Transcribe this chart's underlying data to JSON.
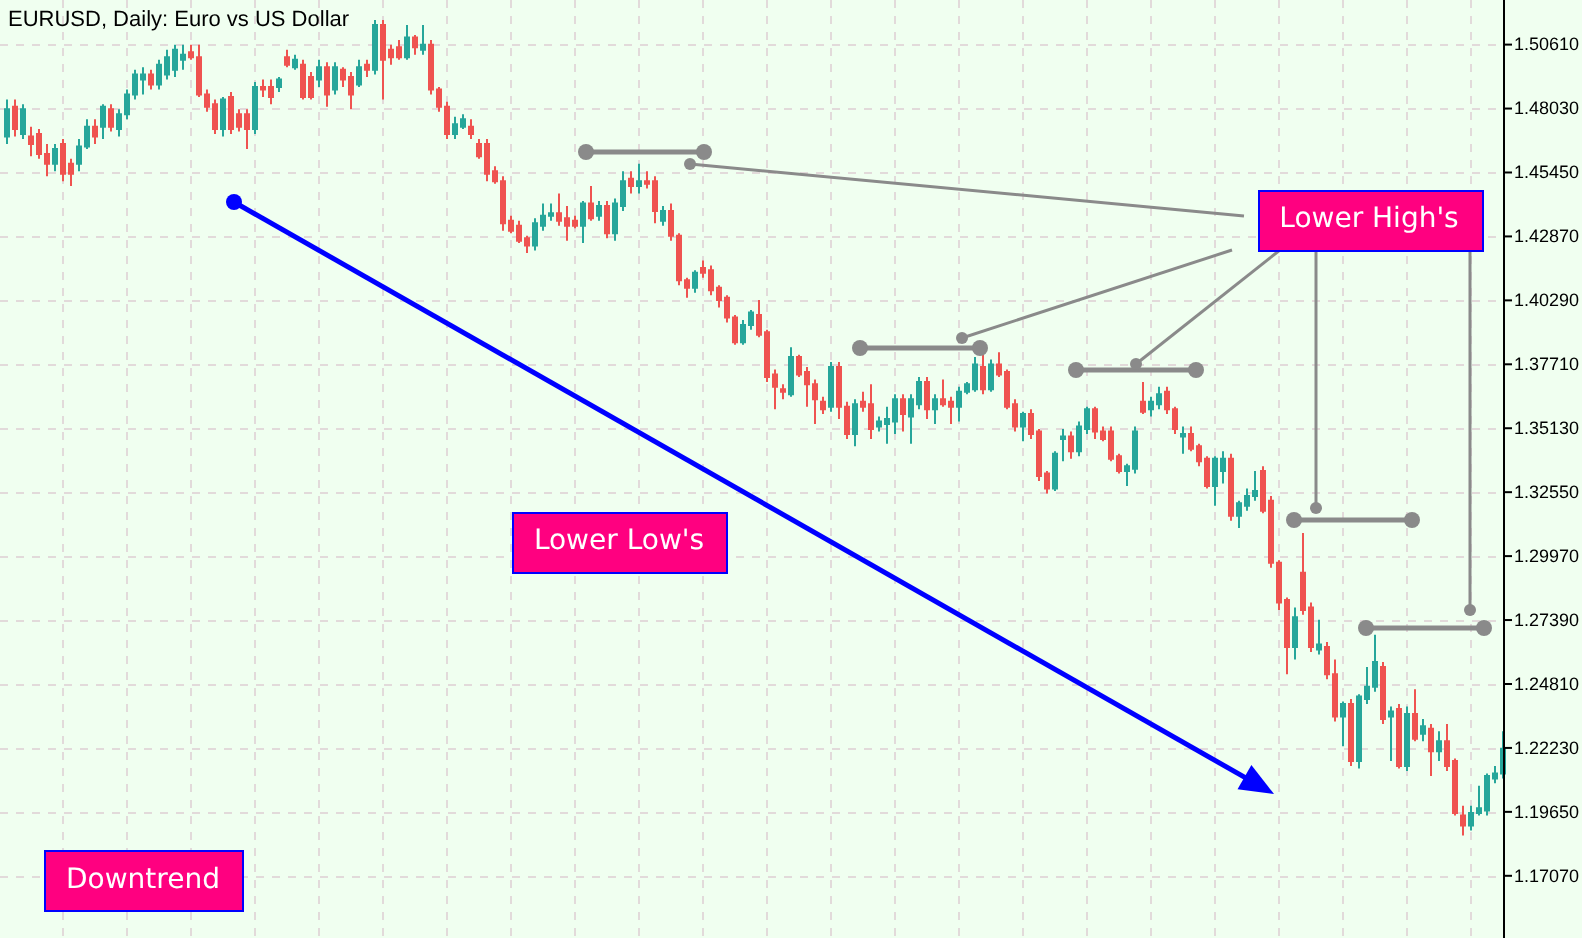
{
  "chart_data": {
    "type": "candlestick",
    "title": "EURUSD, Daily: Euro vs US Dollar",
    "categories": [
      null,
      null,
      null,
      null,
      null,
      null,
      null,
      null,
      null,
      null,
      null,
      null,
      null,
      null,
      null,
      null,
      null,
      null,
      null,
      null,
      null,
      null,
      null,
      null,
      null,
      null,
      null,
      null,
      null,
      null,
      null,
      null,
      null,
      null,
      null,
      null,
      null,
      null,
      null,
      null,
      null,
      null,
      null,
      null,
      null,
      null,
      null,
      null,
      null,
      null,
      null,
      null,
      null,
      null,
      null,
      null,
      null,
      null,
      null,
      null,
      null,
      null,
      null,
      null,
      null,
      null,
      null,
      null,
      null,
      null,
      null,
      null,
      null,
      null,
      null,
      null,
      null,
      null,
      null,
      null,
      null,
      null,
      null,
      null,
      null,
      null,
      null,
      null,
      null,
      null,
      null,
      null,
      null,
      null,
      null,
      null,
      null,
      null,
      null,
      null,
      null,
      null,
      null,
      null,
      null,
      null,
      null,
      null,
      null,
      null,
      null,
      null,
      null,
      null,
      null,
      null,
      null,
      null,
      null,
      null,
      null,
      null,
      null,
      null,
      null,
      null,
      null,
      null,
      null,
      null,
      null,
      null,
      null,
      null,
      null,
      null,
      null,
      null,
      null,
      null,
      null,
      null,
      null,
      null,
      null,
      null,
      null,
      null,
      null,
      null,
      null,
      null,
      null,
      null,
      null,
      null,
      null,
      null,
      null,
      null,
      null,
      null,
      null,
      null,
      null,
      null,
      null,
      null,
      null,
      null,
      null,
      null,
      null,
      null,
      null,
      null,
      null,
      null,
      null,
      null,
      null,
      null,
      null,
      null,
      null,
      null,
      null,
      null
    ],
    "ohlc": [
      [
        1.469,
        1.484,
        1.466,
        1.48
      ],
      [
        1.481,
        1.484,
        1.469,
        1.472
      ],
      [
        1.47,
        1.482,
        1.468,
        1.48
      ],
      [
        1.469,
        1.473,
        1.461,
        1.466
      ],
      [
        1.47,
        1.472,
        1.46,
        1.462
      ],
      [
        1.462,
        1.466,
        1.453,
        1.458
      ],
      [
        1.458,
        1.466,
        1.455,
        1.464
      ],
      [
        1.466,
        1.468,
        1.451,
        1.454
      ],
      [
        1.458,
        1.46,
        1.449,
        1.454
      ],
      [
        1.458,
        1.468,
        1.455,
        1.465
      ],
      [
        1.465,
        1.476,
        1.464,
        1.473
      ],
      [
        1.473,
        1.476,
        1.466,
        1.469
      ],
      [
        1.473,
        1.482,
        1.468,
        1.481
      ],
      [
        1.48,
        1.482,
        1.471,
        1.473
      ],
      [
        1.472,
        1.48,
        1.469,
        1.478
      ],
      [
        1.478,
        1.488,
        1.476,
        1.486
      ],
      [
        1.486,
        1.496,
        1.484,
        1.494
      ],
      [
        1.492,
        1.497,
        1.486,
        1.494
      ],
      [
        1.494,
        1.496,
        1.488,
        1.49
      ],
      [
        1.49,
        1.5,
        1.488,
        1.498
      ],
      [
        1.494,
        1.504,
        1.492,
        1.501
      ],
      [
        1.496,
        1.506,
        1.493,
        1.504
      ],
      [
        1.5,
        1.506,
        1.496,
        1.502
      ],
      [
        1.503,
        1.506,
        1.5,
        1.501
      ],
      [
        1.501,
        1.506,
        1.485,
        1.486
      ],
      [
        1.486,
        1.488,
        1.479,
        1.481
      ],
      [
        1.482,
        1.484,
        1.47,
        1.472
      ],
      [
        1.472,
        1.485,
        1.469,
        1.484
      ],
      [
        1.485,
        1.487,
        1.47,
        1.472
      ],
      [
        1.478,
        1.48,
        1.471,
        1.473
      ],
      [
        1.478,
        1.48,
        1.464,
        1.472
      ],
      [
        1.472,
        1.491,
        1.47,
        1.489
      ],
      [
        1.489,
        1.492,
        1.485,
        1.488
      ],
      [
        1.489,
        1.492,
        1.482,
        1.485
      ],
      [
        1.489,
        1.493,
        1.487,
        1.492
      ],
      [
        1.501,
        1.504,
        1.497,
        1.498
      ],
      [
        1.497,
        1.502,
        1.496,
        1.5
      ],
      [
        1.498,
        1.5,
        1.484,
        1.485
      ],
      [
        1.493,
        1.495,
        1.484,
        1.485
      ],
      [
        1.492,
        1.5,
        1.489,
        1.497
      ],
      [
        1.497,
        1.499,
        1.481,
        1.486
      ],
      [
        1.488,
        1.499,
        1.486,
        1.497
      ],
      [
        1.496,
        1.497,
        1.489,
        1.492
      ],
      [
        1.493,
        1.495,
        1.48,
        1.486
      ],
      [
        1.49,
        1.5,
        1.489,
        1.497
      ],
      [
        1.498,
        1.5,
        1.493,
        1.496
      ],
      [
        1.496,
        1.516,
        1.494,
        1.514
      ],
      [
        1.514,
        1.516,
        1.484,
        1.5
      ],
      [
        1.504,
        1.506,
        1.498,
        1.501
      ],
      [
        1.505,
        1.508,
        1.5,
        1.501
      ],
      [
        1.501,
        1.514,
        1.5,
        1.509
      ],
      [
        1.509,
        1.51,
        1.502,
        1.505
      ],
      [
        1.504,
        1.514,
        1.502,
        1.506
      ],
      [
        1.506,
        1.508,
        1.486,
        1.488
      ],
      [
        1.488,
        1.489,
        1.479,
        1.481
      ],
      [
        1.481,
        1.483,
        1.468,
        1.47
      ],
      [
        1.47,
        1.477,
        1.468,
        1.474
      ],
      [
        1.473,
        1.478,
        1.472,
        1.476
      ],
      [
        1.473,
        1.476,
        1.468,
        1.47
      ],
      [
        1.466,
        1.468,
        1.46,
        1.461
      ],
      [
        1.466,
        1.468,
        1.451,
        1.454
      ],
      [
        1.455,
        1.457,
        1.45,
        1.451
      ],
      [
        1.451,
        1.453,
        1.431,
        1.434
      ],
      [
        1.435,
        1.437,
        1.43,
        1.431
      ],
      [
        1.433,
        1.435,
        1.426,
        1.427
      ],
      [
        1.428,
        1.429,
        1.422,
        1.425
      ],
      [
        1.425,
        1.436,
        1.423,
        1.434
      ],
      [
        1.433,
        1.442,
        1.431,
        1.437
      ],
      [
        1.437,
        1.442,
        1.435,
        1.438
      ],
      [
        1.438,
        1.446,
        1.433,
        1.435
      ],
      [
        1.436,
        1.441,
        1.427,
        1.433
      ],
      [
        1.435,
        1.437,
        1.432,
        1.433
      ],
      [
        1.433,
        1.443,
        1.426,
        1.442
      ],
      [
        1.442,
        1.449,
        1.435,
        1.436
      ],
      [
        1.437,
        1.443,
        1.435,
        1.441
      ],
      [
        1.441,
        1.443,
        1.428,
        1.43
      ],
      [
        1.43,
        1.444,
        1.427,
        1.442
      ],
      [
        1.441,
        1.455,
        1.439,
        1.451
      ],
      [
        1.452,
        1.455,
        1.446,
        1.449
      ],
      [
        1.449,
        1.458,
        1.446,
        1.451
      ],
      [
        1.451,
        1.455,
        1.448,
        1.45
      ],
      [
        1.451,
        1.453,
        1.434,
        1.439
      ],
      [
        1.435,
        1.441,
        1.433,
        1.439
      ],
      [
        1.439,
        1.442,
        1.427,
        1.429
      ],
      [
        1.429,
        1.43,
        1.409,
        1.411
      ],
      [
        1.411,
        1.412,
        1.404,
        1.408
      ],
      [
        1.408,
        1.415,
        1.406,
        1.414
      ],
      [
        1.416,
        1.419,
        1.412,
        1.414
      ],
      [
        1.415,
        1.417,
        1.405,
        1.407
      ],
      [
        1.408,
        1.409,
        1.4,
        1.403
      ],
      [
        1.404,
        1.405,
        1.394,
        1.396
      ],
      [
        1.396,
        1.397,
        1.385,
        1.386
      ],
      [
        1.386,
        1.395,
        1.385,
        1.393
      ],
      [
        1.393,
        1.399,
        1.391,
        1.398
      ],
      [
        1.397,
        1.403,
        1.388,
        1.389
      ],
      [
        1.39,
        1.391,
        1.37,
        1.372
      ],
      [
        1.373,
        1.375,
        1.359,
        1.368
      ],
      [
        1.367,
        1.369,
        1.363,
        1.366
      ],
      [
        1.365,
        1.384,
        1.364,
        1.38
      ],
      [
        1.38,
        1.381,
        1.372,
        1.373
      ],
      [
        1.374,
        1.376,
        1.36,
        1.369
      ],
      [
        1.369,
        1.371,
        1.353,
        1.363
      ],
      [
        1.362,
        1.364,
        1.357,
        1.359
      ],
      [
        1.36,
        1.378,
        1.358,
        1.376
      ],
      [
        1.376,
        1.378,
        1.355,
        1.36
      ],
      [
        1.36,
        1.362,
        1.347,
        1.349
      ],
      [
        1.349,
        1.363,
        1.344,
        1.361
      ],
      [
        1.362,
        1.366,
        1.358,
        1.36
      ],
      [
        1.361,
        1.369,
        1.347,
        1.351
      ],
      [
        1.352,
        1.356,
        1.35,
        1.354
      ],
      [
        1.353,
        1.36,
        1.345,
        1.355
      ],
      [
        1.354,
        1.365,
        1.349,
        1.363
      ],
      [
        1.363,
        1.365,
        1.35,
        1.357
      ],
      [
        1.356,
        1.365,
        1.345,
        1.363
      ],
      [
        1.361,
        1.372,
        1.359,
        1.37
      ],
      [
        1.37,
        1.372,
        1.355,
        1.359
      ],
      [
        1.359,
        1.365,
        1.353,
        1.363
      ],
      [
        1.363,
        1.371,
        1.36,
        1.361
      ],
      [
        1.362,
        1.364,
        1.353,
        1.36
      ],
      [
        1.36,
        1.368,
        1.354,
        1.366
      ],
      [
        1.366,
        1.37,
        1.365,
        1.369
      ],
      [
        1.367,
        1.38,
        1.366,
        1.377
      ],
      [
        1.376,
        1.381,
        1.365,
        1.367
      ],
      [
        1.367,
        1.379,
        1.366,
        1.377
      ],
      [
        1.377,
        1.382,
        1.372,
        1.373
      ],
      [
        1.374,
        1.375,
        1.359,
        1.36
      ],
      [
        1.361,
        1.363,
        1.35,
        1.352
      ],
      [
        1.352,
        1.358,
        1.346,
        1.357
      ],
      [
        1.357,
        1.359,
        1.347,
        1.349
      ],
      [
        1.35,
        1.351,
        1.33,
        1.332
      ],
      [
        1.333,
        1.334,
        1.325,
        1.327
      ],
      [
        1.327,
        1.342,
        1.326,
        1.341
      ],
      [
        1.347,
        1.351,
        1.338,
        1.348
      ],
      [
        1.348,
        1.35,
        1.339,
        1.342
      ],
      [
        1.342,
        1.354,
        1.34,
        1.352
      ],
      [
        1.351,
        1.36,
        1.349,
        1.359
      ],
      [
        1.359,
        1.36,
        1.347,
        1.35
      ],
      [
        1.35,
        1.352,
        1.346,
        1.347
      ],
      [
        1.35,
        1.352,
        1.338,
        1.339
      ],
      [
        1.34,
        1.341,
        1.333,
        1.334
      ],
      [
        1.334,
        1.337,
        1.328,
        1.336
      ],
      [
        1.335,
        1.352,
        1.333,
        1.35
      ],
      [
        1.362,
        1.37,
        1.357,
        1.358
      ],
      [
        1.359,
        1.364,
        1.356,
        1.362
      ],
      [
        1.361,
        1.368,
        1.359,
        1.365
      ],
      [
        1.366,
        1.368,
        1.357,
        1.359
      ],
      [
        1.359,
        1.36,
        1.349,
        1.351
      ],
      [
        1.348,
        1.352,
        1.341,
        1.349
      ],
      [
        1.349,
        1.352,
        1.342,
        1.343
      ],
      [
        1.344,
        1.345,
        1.336,
        1.338
      ],
      [
        1.339,
        1.34,
        1.327,
        1.328
      ],
      [
        1.328,
        1.34,
        1.32,
        1.339
      ],
      [
        1.334,
        1.342,
        1.329,
        1.339
      ],
      [
        1.339,
        1.341,
        1.314,
        1.316
      ],
      [
        1.316,
        1.322,
        1.311,
        1.321
      ],
      [
        1.32,
        1.327,
        1.318,
        1.324
      ],
      [
        1.324,
        1.334,
        1.322,
        1.326
      ],
      [
        1.334,
        1.336,
        1.317,
        1.318
      ],
      [
        1.322,
        1.324,
        1.295,
        1.297
      ],
      [
        1.297,
        1.298,
        1.278,
        1.281
      ],
      [
        1.282,
        1.283,
        1.252,
        1.263
      ],
      [
        1.263,
        1.279,
        1.258,
        1.275
      ],
      [
        1.293,
        1.309,
        1.276,
        1.278
      ],
      [
        1.279,
        1.281,
        1.261,
        1.263
      ],
      [
        1.262,
        1.274,
        1.26,
        1.264
      ],
      [
        1.263,
        1.265,
        1.25,
        1.252
      ],
      [
        1.252,
        1.258,
        1.233,
        1.235
      ],
      [
        1.235,
        1.241,
        1.223,
        1.24
      ],
      [
        1.24,
        1.242,
        1.215,
        1.217
      ],
      [
        1.217,
        1.244,
        1.214,
        1.243
      ],
      [
        1.242,
        1.255,
        1.24,
        1.247
      ],
      [
        1.247,
        1.268,
        1.245,
        1.257
      ],
      [
        1.255,
        1.257,
        1.232,
        1.234
      ],
      [
        1.235,
        1.239,
        1.217,
        1.237
      ],
      [
        1.238,
        1.24,
        1.214,
        1.215
      ],
      [
        1.215,
        1.239,
        1.213,
        1.236
      ],
      [
        1.236,
        1.246,
        1.225,
        1.226
      ],
      [
        1.228,
        1.234,
        1.225,
        1.231
      ],
      [
        1.23,
        1.232,
        1.211,
        1.221
      ],
      [
        1.221,
        1.229,
        1.217,
        1.225
      ],
      [
        1.225,
        1.232,
        1.213,
        1.215
      ],
      [
        1.217,
        1.218,
        1.195,
        1.196
      ],
      [
        1.195,
        1.199,
        1.187,
        1.191
      ],
      [
        1.191,
        1.199,
        1.189,
        1.196
      ],
      [
        1.196,
        1.207,
        1.195,
        1.198
      ],
      [
        1.197,
        1.212,
        1.195,
        1.211
      ],
      [
        1.21,
        1.215,
        1.208,
        1.212
      ],
      [
        1.212,
        1.229,
        1.21,
        1.222
      ]
    ],
    "colors": [
      "#26a69a",
      "#ef5350",
      "#26a69a",
      "#ef5350",
      "#ef5350",
      "#ef5350",
      "#26a69a",
      "#ef5350",
      "#ef5350",
      "#26a69a",
      "#26a69a",
      "#ef5350",
      "#26a69a",
      "#ef5350",
      "#26a69a",
      "#26a69a",
      "#26a69a",
      "#26a69a",
      "#ef5350",
      "#26a69a",
      "#26a69a",
      "#26a69a",
      "#26a69a",
      "#ef5350",
      "#ef5350",
      "#ef5350",
      "#ef5350",
      "#26a69a",
      "#ef5350",
      "#ef5350",
      "#ef5350",
      "#26a69a",
      "#ef5350",
      "#ef5350",
      "#26a69a",
      "#ef5350",
      "#26a69a",
      "#ef5350",
      "#ef5350",
      "#26a69a",
      "#ef5350",
      "#26a69a",
      "#ef5350",
      "#ef5350",
      "#26a69a",
      "#ef5350",
      "#26a69a",
      "#ef5350",
      "#ef5350",
      "#ef5350",
      "#26a69a",
      "#ef5350",
      "#26a69a",
      "#ef5350",
      "#ef5350",
      "#ef5350",
      "#26a69a",
      "#26a69a",
      "#ef5350",
      "#ef5350",
      "#ef5350",
      "#ef5350",
      "#ef5350",
      "#ef5350",
      "#ef5350",
      "#ef5350",
      "#26a69a",
      "#26a69a",
      "#26a69a",
      "#ef5350",
      "#ef5350",
      "#ef5350",
      "#26a69a",
      "#ef5350",
      "#26a69a",
      "#ef5350",
      "#26a69a",
      "#26a69a",
      "#ef5350",
      "#26a69a",
      "#ef5350",
      "#ef5350",
      "#26a69a",
      "#ef5350",
      "#ef5350",
      "#ef5350",
      "#26a69a",
      "#ef5350",
      "#ef5350",
      "#ef5350",
      "#ef5350",
      "#ef5350",
      "#26a69a",
      "#26a69a",
      "#ef5350",
      "#ef5350",
      "#ef5350",
      "#ef5350",
      "#26a69a",
      "#ef5350",
      "#ef5350",
      "#ef5350",
      "#ef5350",
      "#26a69a",
      "#ef5350",
      "#ef5350",
      "#26a69a",
      "#ef5350",
      "#ef5350",
      "#26a69a",
      "#26a69a",
      "#26a69a",
      "#ef5350",
      "#26a69a",
      "#26a69a",
      "#ef5350",
      "#26a69a",
      "#ef5350",
      "#ef5350",
      "#26a69a",
      "#26a69a",
      "#26a69a",
      "#ef5350",
      "#26a69a",
      "#ef5350",
      "#ef5350",
      "#ef5350",
      "#26a69a",
      "#ef5350",
      "#ef5350",
      "#ef5350",
      "#26a69a",
      "#26a69a",
      "#ef5350",
      "#26a69a",
      "#26a69a",
      "#ef5350",
      "#ef5350",
      "#ef5350",
      "#ef5350",
      "#26a69a",
      "#26a69a",
      "#ef5350",
      "#26a69a",
      "#26a69a",
      "#ef5350",
      "#ef5350",
      "#26a69a",
      "#ef5350",
      "#ef5350",
      "#ef5350",
      "#26a69a",
      "#26a69a",
      "#ef5350",
      "#26a69a",
      "#26a69a",
      "#26a69a",
      "#ef5350",
      "#ef5350",
      "#ef5350",
      "#ef5350",
      "#26a69a",
      "#ef5350",
      "#ef5350",
      "#26a69a",
      "#ef5350",
      "#ef5350",
      "#26a69a",
      "#ef5350",
      "#26a69a",
      "#26a69a",
      "#26a69a",
      "#ef5350",
      "#26a69a",
      "#ef5350",
      "#26a69a",
      "#ef5350",
      "#26a69a",
      "#ef5350",
      "#26a69a",
      "#ef5350",
      "#ef5350",
      "#ef5350",
      "#26a69a",
      "#26a69a",
      "#26a69a",
      "#26a69a",
      "#26a69a"
    ],
    "ylim": [
      1.1456,
      1.5241
    ],
    "yticks": [
      {
        "value": 1.1707,
        "label": "1.17070"
      },
      {
        "value": 1.1965,
        "label": "1.19650"
      },
      {
        "value": 1.2223,
        "label": "1.22230"
      },
      {
        "value": 1.2481,
        "label": "1.24810"
      },
      {
        "value": 1.2739,
        "label": "1.27390"
      },
      {
        "value": 1.2997,
        "label": "1.29970"
      },
      {
        "value": 1.3255,
        "label": "1.32550"
      },
      {
        "value": 1.3513,
        "label": "1.35130"
      },
      {
        "value": 1.3771,
        "label": "1.37710"
      },
      {
        "value": 1.4029,
        "label": "1.40290"
      },
      {
        "value": 1.4287,
        "label": "1.42870"
      },
      {
        "value": 1.4545,
        "label": "1.45450"
      },
      {
        "value": 1.4803,
        "label": "1.48030"
      },
      {
        "value": 1.5061,
        "label": "1.50610"
      }
    ],
    "grid": true,
    "tick_labels": "y",
    "annotations": [
      "Lower High's",
      "Lower Low's",
      "Downtrend"
    ]
  }
}
